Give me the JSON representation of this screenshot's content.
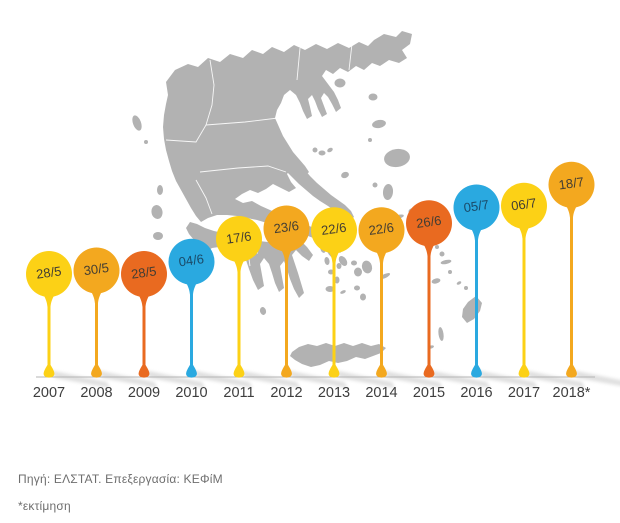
{
  "chart_data": {
    "type": "lollipop-timeline",
    "description": "Tax freedom day style chart over a map of Greece; one balloon per year showing a date (day/month); taller balloon = later date",
    "categories": [
      "2007",
      "2008",
      "2009",
      "2010",
      "2011",
      "2012",
      "2013",
      "2014",
      "2015",
      "2016",
      "2017",
      "2018*"
    ],
    "values": [
      "28/5",
      "30/5",
      "28/5",
      "04/6",
      "17/6",
      "23/6",
      "22/6",
      "22/6",
      "26/6",
      "05/7",
      "06/7",
      "18/7"
    ],
    "series": [
      {
        "name": "date-day-month",
        "values": [
          "28/5",
          "30/5",
          "28/5",
          "04/6",
          "17/6",
          "23/6",
          "22/6",
          "22/6",
          "26/6",
          "05/7",
          "06/7",
          "18/7"
        ]
      }
    ],
    "colors": [
      "yellow",
      "amber",
      "orange",
      "blue",
      "yellow",
      "amber",
      "yellow",
      "amber",
      "orange",
      "blue",
      "yellow",
      "amber"
    ],
    "palette": {
      "yellow": "#FCD116",
      "amber": "#F3A81F",
      "orange": "#E96A20",
      "blue": "#2AA9E0"
    },
    "label_color_warm": "#423D33",
    "label_color_blue": "#1A4A68",
    "axis": {
      "baseline_color": "#B5B5B5",
      "year_label_color": "#3E3E3E"
    },
    "xlabel": "",
    "ylabel": "",
    "legend": "none",
    "grid": false
  },
  "map": {
    "name": "greece",
    "fill": "#B2B2B2",
    "region_border_color": "#FFFFFF"
  },
  "footer": {
    "source": "Πηγή: ΕΛΣΤΑΤ. Επεξεργασία: ΚΕΦίΜ",
    "estimate_note": "*εκτίμηση"
  }
}
